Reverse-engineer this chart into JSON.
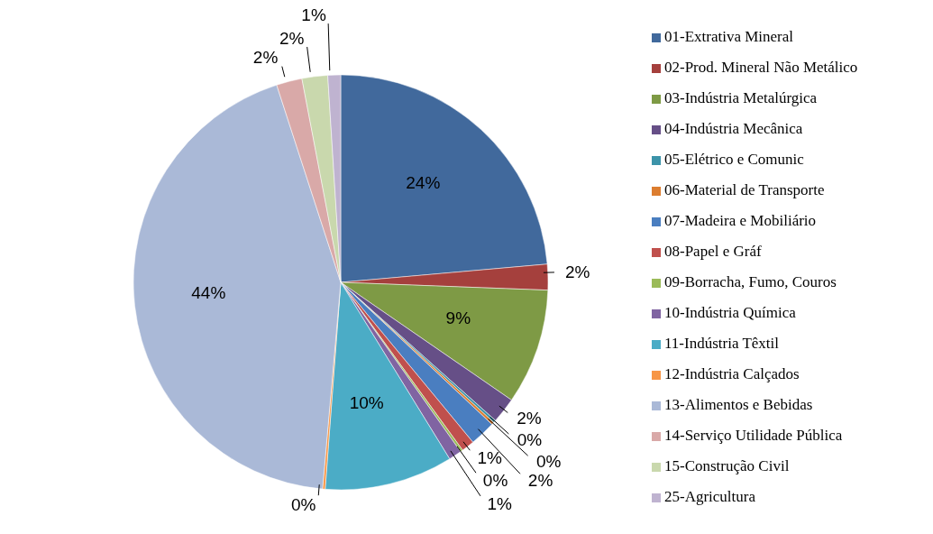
{
  "chart_data": {
    "type": "pie",
    "categories": [
      "01-Extrativa Mineral",
      "02-Prod. Mineral Não Metálico",
      "03-Indústria Metalúrgica",
      "04-Indústria Mecânica",
      "05-Elétrico e Comunic",
      "06-Material de Transporte",
      "07-Madeira e Mobiliário",
      "08-Papel e Gráf",
      "09-Borracha, Fumo, Couros",
      "10-Indústria Química",
      "11-Indústria Têxtil",
      "12-Indústria Calçados",
      "13-Alimentos e Bebidas",
      "14-Serviço Utilidade Pública",
      "15-Construção Civil",
      "25-Agricultura"
    ],
    "values": [
      23.6,
      2,
      9,
      2,
      0.2,
      0.2,
      2,
      1,
      0.2,
      1,
      10,
      0.2,
      43.6,
      2,
      2,
      1
    ],
    "value_labels": [
      "24%",
      "2%",
      "9%",
      "2%",
      "0%",
      "0%",
      "2%",
      "1%",
      "0%",
      "1%",
      "10%",
      "0%",
      "44%",
      "2%",
      "2%",
      "1%"
    ],
    "colors": [
      "#41699c",
      "#a5403d",
      "#7e9a45",
      "#664f87",
      "#3c93a9",
      "#dc7d2f",
      "#4a7ec0",
      "#c0504d",
      "#9bbb59",
      "#8064a2",
      "#4bacc6",
      "#f79646",
      "#aab9d7",
      "#d9a9a8",
      "#c9d8ad",
      "#bfb3d0"
    ],
    "legend": "right"
  }
}
